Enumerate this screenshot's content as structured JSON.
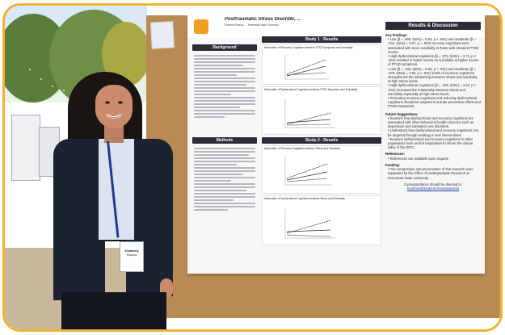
{
  "poster": {
    "title": "Posttraumatic Stress Disorder, ...",
    "authors_line": "Kimberly Ramos, ... Kennesaw State University",
    "sections": {
      "background": "Background",
      "study1": "Study 1 : Results",
      "methods": "Methods",
      "study2": "Study 2 : Results",
      "results_discussion": "Results & Discussion"
    },
    "figures": {
      "fig1": "Moderation of Recovery Cognitions between PTSD Symptoms and Suicidality",
      "fig2": "Moderation of Dysfunctional Cognitions between PTSD Symptoms and Suicidality",
      "fig3": "Moderation of Recovery Cognitions between Stress and Suicidality",
      "fig4": "Moderation of Dysfunctional Cognitions between Stress and Suicidality"
    },
    "results_discussion": {
      "key_findings_heading": "Key Findings:",
      "key_findings": [
        "Low (β = .099, t(151) = 6.03, p < .001) and moderate (β = .041, t(151) = 3.07, p = .002) recovery cognitions were associated with more suicidality in those with elevated PTSD scores.",
        "High dysfunctional cognitions (β = .072, t(151) = 3.71, p < .001) resulted in higher scores on suicidality at higher scores of PTSD symptoms.",
        "Low (β = .162, t(254) = 6.65, p < .001) and moderate (β = .076, t(254) = 3.90, p < .001) levels of recovery cognitions strengthened the relationship between stress and suicidality at high stress levels.",
        "High dysfunctional cognitions (β = .106, t(254) = 4.20, p < .001) increased the relationship between stress and suicidality especially at high stress levels.",
        "Promoting recovery cognitions and reducing dysfunctional cognitions should be targeted in suicide prevention efforts and PTSD treatments."
      ],
      "future_heading": "Future Suggestions:",
      "future": [
        "Examine how dysfunctional and recovery cognitions are associated with other behavioral health concerns such as depression and substance use disorders.",
        "Understand how dysfunctional and recovery cognitions can be targeted through existing or new interventions.",
        "Examine dysfunctional and recovery cognitions in other populations such as first responders to inform the clinical utility of the DRCI."
      ],
      "references_heading": "References:",
      "references": "References are available upon request.",
      "funding_heading": "Funding:",
      "funding": "The composition and presentation of this research were supported by the Office of Undergraduate Research at Kennesaw State University.",
      "correspondence": "Correspondence should be directed to:",
      "email": "kramos4@students.kennesaw.edu"
    }
  },
  "badge": {
    "name": "Kimberly",
    "line2": "Ramos"
  },
  "colors": {
    "frame_border": "#f2b233",
    "corkboard": "#b98a52",
    "poster_section_bar": "#2d2d3a",
    "jacket": "#1d2230"
  }
}
